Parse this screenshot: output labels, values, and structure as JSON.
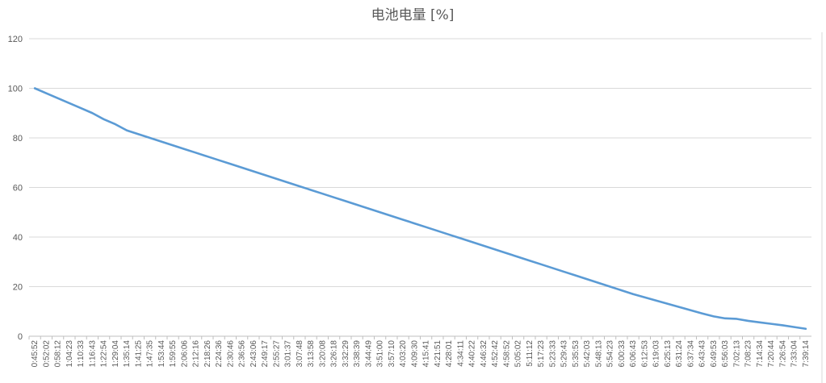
{
  "chart_data": {
    "type": "line",
    "title": "电池电量 [%]",
    "xlabel": "",
    "ylabel": "",
    "ylim": [
      0,
      120
    ],
    "yticks": [
      0,
      20,
      40,
      60,
      80,
      100,
      120
    ],
    "grid": true,
    "legend": "none",
    "line_color": "#5b9bd5",
    "categories": [
      "0:45:52",
      "0:52:02",
      "0:58:12",
      "1:04:23",
      "1:10:33",
      "1:16:43",
      "1:22:54",
      "1:29:04",
      "1:35:14",
      "1:41:25",
      "1:47:35",
      "1:53:44",
      "1:59:55",
      "2:06:06",
      "2:12:16",
      "2:18:26",
      "2:24:36",
      "2:30:46",
      "2:36:56",
      "2:43:06",
      "2:49:17",
      "2:55:27",
      "3:01:37",
      "3:07:48",
      "3:13:58",
      "3:20:08",
      "3:26:18",
      "3:32:29",
      "3:38:39",
      "3:44:49",
      "3:51:00",
      "3:57:10",
      "4:03:20",
      "4:09:30",
      "4:15:41",
      "4:21:51",
      "4:28:01",
      "4:34:11",
      "4:40:22",
      "4:46:32",
      "4:52:42",
      "4:58:52",
      "5:05:02",
      "5:11:12",
      "5:17:23",
      "5:23:33",
      "5:29:43",
      "5:35:53",
      "5:42:03",
      "5:48:13",
      "5:54:23",
      "6:00:33",
      "6:06:43",
      "6:12:53",
      "6:19:03",
      "6:25:13",
      "6:31:24",
      "6:37:34",
      "6:43:43",
      "6:49:53",
      "6:56:03",
      "7:02:13",
      "7:08:23",
      "7:14:34",
      "7:20:44",
      "7:26:54",
      "7:33:04",
      "7:39:14"
    ],
    "series": [
      {
        "values": [
          100,
          98,
          96,
          94,
          92,
          90,
          87.5,
          85.5,
          83,
          81.5,
          80,
          78.5,
          77,
          75.5,
          74,
          72.5,
          71,
          69.5,
          68,
          66.5,
          65,
          63.5,
          62,
          60.5,
          59,
          57.5,
          56,
          54.5,
          53,
          51.5,
          50,
          48.5,
          47,
          45.5,
          44,
          42.5,
          41,
          39.5,
          38,
          36.5,
          35,
          33.5,
          32,
          30.5,
          29,
          27.5,
          26,
          24.5,
          23,
          21.5,
          20,
          18.5,
          17,
          15.7,
          14.4,
          13.1,
          11.8,
          10.5,
          9.2,
          8,
          7.2,
          7,
          6.2,
          5.6,
          5,
          4.4,
          3.7,
          3.0
        ]
      }
    ]
  }
}
